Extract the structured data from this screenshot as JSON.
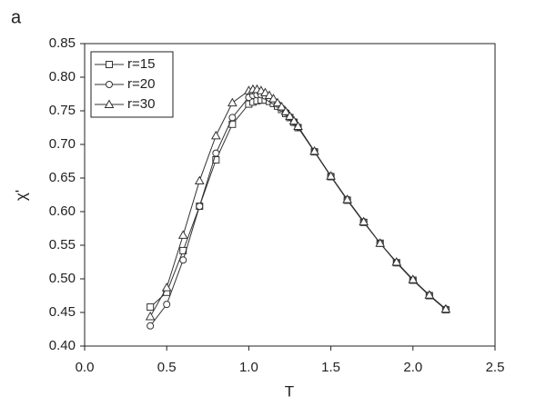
{
  "panel_label": "a",
  "chart_data": {
    "type": "line",
    "x_label": "T",
    "y_label": "χ'",
    "xlim": [
      0,
      2.5
    ],
    "xticks": [
      {
        "value": 0,
        "label": "0.0"
      },
      {
        "value": 0.5,
        "label": "0.5"
      },
      {
        "value": 1,
        "label": "1.0"
      },
      {
        "value": 1.5,
        "label": "1.5"
      },
      {
        "value": 2,
        "label": "2.0"
      },
      {
        "value": 2.5,
        "label": "2.5"
      }
    ],
    "ylim": [
      0.4,
      0.85
    ],
    "yticks": [
      {
        "value": 0.4,
        "label": "0.40"
      },
      {
        "value": 0.45,
        "label": "0.45"
      },
      {
        "value": 0.5,
        "label": "0.50"
      },
      {
        "value": 0.55,
        "label": "0.55"
      },
      {
        "value": 0.6,
        "label": "0.60"
      },
      {
        "value": 0.65,
        "label": "0.65"
      },
      {
        "value": 0.7,
        "label": "0.70"
      },
      {
        "value": 0.75,
        "label": "0.75"
      },
      {
        "value": 0.8,
        "label": "0.80"
      },
      {
        "value": 0.85,
        "label": "0.85"
      }
    ],
    "legend": "upper left",
    "x": [
      0.4,
      0.5,
      0.6,
      0.7,
      0.8,
      0.9,
      1.0,
      1.025,
      1.05,
      1.075,
      1.1,
      1.125,
      1.15,
      1.175,
      1.2,
      1.225,
      1.25,
      1.275,
      1.3,
      1.4,
      1.5,
      1.6,
      1.7,
      1.8,
      1.9,
      2.0,
      2.1,
      2.2
    ],
    "series": [
      {
        "name": "r=15",
        "color": "#333333",
        "marker": "square",
        "values": [
          0.458,
          0.48,
          0.542,
          0.608,
          0.677,
          0.73,
          0.76,
          0.763,
          0.765,
          0.766,
          0.766,
          0.764,
          0.761,
          0.757,
          0.752,
          0.746,
          0.74,
          0.733,
          0.725,
          0.689,
          0.652,
          0.617,
          0.584,
          0.553,
          0.524,
          0.498,
          0.475,
          0.454
        ]
      },
      {
        "name": "r=20",
        "color": "#333333",
        "marker": "circle",
        "values": [
          0.43,
          0.462,
          0.528,
          0.608,
          0.687,
          0.74,
          0.77,
          0.773,
          0.774,
          0.774,
          0.772,
          0.769,
          0.765,
          0.76,
          0.754,
          0.748,
          0.741,
          0.734,
          0.726,
          0.689,
          0.653,
          0.618,
          0.585,
          0.553,
          0.524,
          0.498,
          0.476,
          0.455
        ]
      },
      {
        "name": "r=30",
        "color": "#333333",
        "marker": "triangle",
        "values": [
          0.444,
          0.487,
          0.565,
          0.646,
          0.713,
          0.762,
          0.78,
          0.782,
          0.782,
          0.78,
          0.777,
          0.773,
          0.768,
          0.762,
          0.756,
          0.749,
          0.742,
          0.735,
          0.727,
          0.69,
          0.653,
          0.618,
          0.585,
          0.553,
          0.525,
          0.499,
          0.476,
          0.455
        ]
      }
    ]
  }
}
